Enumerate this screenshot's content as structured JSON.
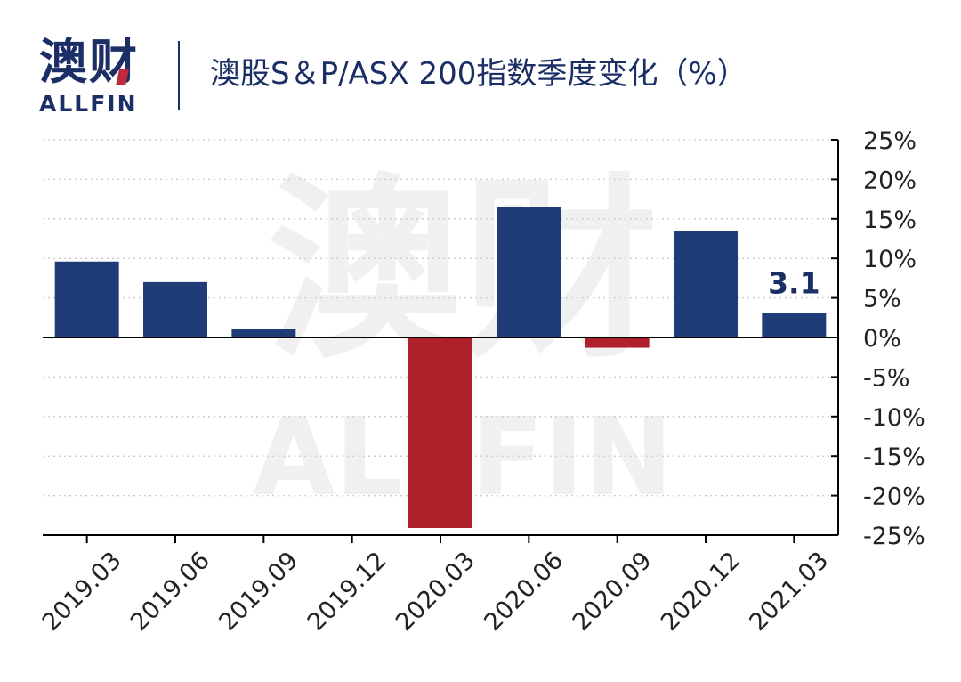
{
  "header": {
    "logo_cn": "澳财",
    "logo_en": "ALLFIN",
    "title": "澳股S＆P/ASX 200指数季度变化（%）"
  },
  "watermark": {
    "cn": "澳财",
    "en": "ALLFIN"
  },
  "colors": {
    "positive": "#1f3c77",
    "negative": "#b0202a",
    "text": "#1b2f66",
    "grid": "#cfcfcf"
  },
  "chart_data": {
    "type": "bar",
    "title": "澳股S＆P/ASX 200指数季度变化（%）",
    "categories": [
      "2019.03",
      "2019.06",
      "2019.09",
      "2019.12",
      "2020.03",
      "2020.06",
      "2020.09",
      "2020.12",
      "2021.03"
    ],
    "values": [
      9.6,
      7.0,
      1.1,
      null,
      -24.1,
      16.5,
      -1.3,
      13.5,
      3.1
    ],
    "ylim": [
      -25,
      25
    ],
    "yticks": [
      "25%",
      "20%",
      "15%",
      "10%",
      "5%",
      "0%",
      "-5%",
      "-10%",
      "-15%",
      "-20%",
      "-25%"
    ],
    "ytick_values": [
      25,
      20,
      15,
      10,
      5,
      0,
      -5,
      -10,
      -15,
      -20,
      -25
    ],
    "data_labels": [
      {
        "category": "2021.03",
        "text": "3.1"
      }
    ],
    "y_axis_position": "right",
    "grid": "dotted horizontal"
  }
}
